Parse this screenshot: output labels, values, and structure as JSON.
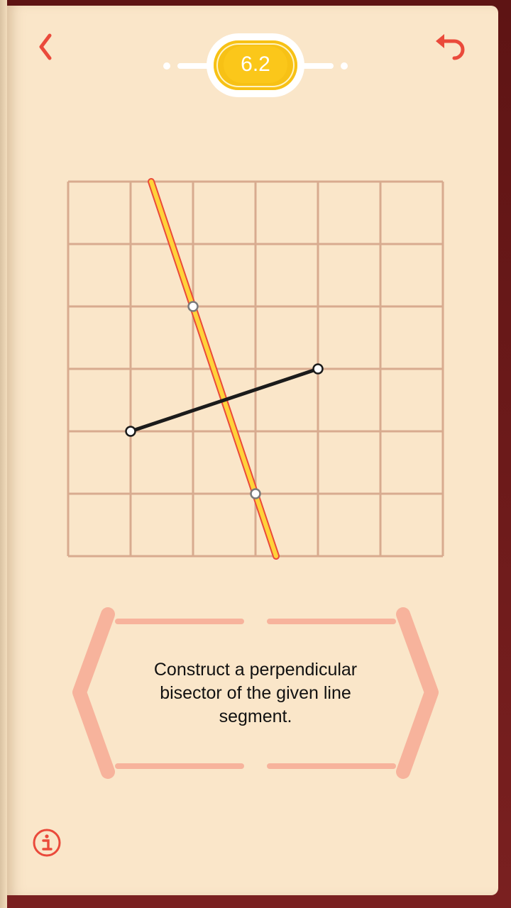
{
  "level": {
    "number": "6.2"
  },
  "instruction": {
    "text": "Construct a perpendicular bisector of the given line segment."
  },
  "colors": {
    "page": "#fae6c9",
    "grid": "#d8ab8f",
    "accent_red": "#ea4a3b",
    "tool_yellow": "#ffd23a",
    "segment": "#1b1b1b",
    "hint_frame": "#f7b39c",
    "badge_gold": "#f7c115"
  },
  "icons": {
    "back": "chevron-left-icon",
    "undo": "undo-icon",
    "info": "info-icon"
  },
  "board": {
    "grid_cols": 6,
    "grid_rows": 6,
    "given_segment": {
      "from": [
        1,
        4
      ],
      "to": [
        4,
        3
      ]
    },
    "constructed_line": {
      "from": [
        1.33,
        0
      ],
      "to": [
        3.33,
        6
      ],
      "points": [
        [
          2,
          2
        ],
        [
          3,
          5
        ]
      ]
    }
  }
}
